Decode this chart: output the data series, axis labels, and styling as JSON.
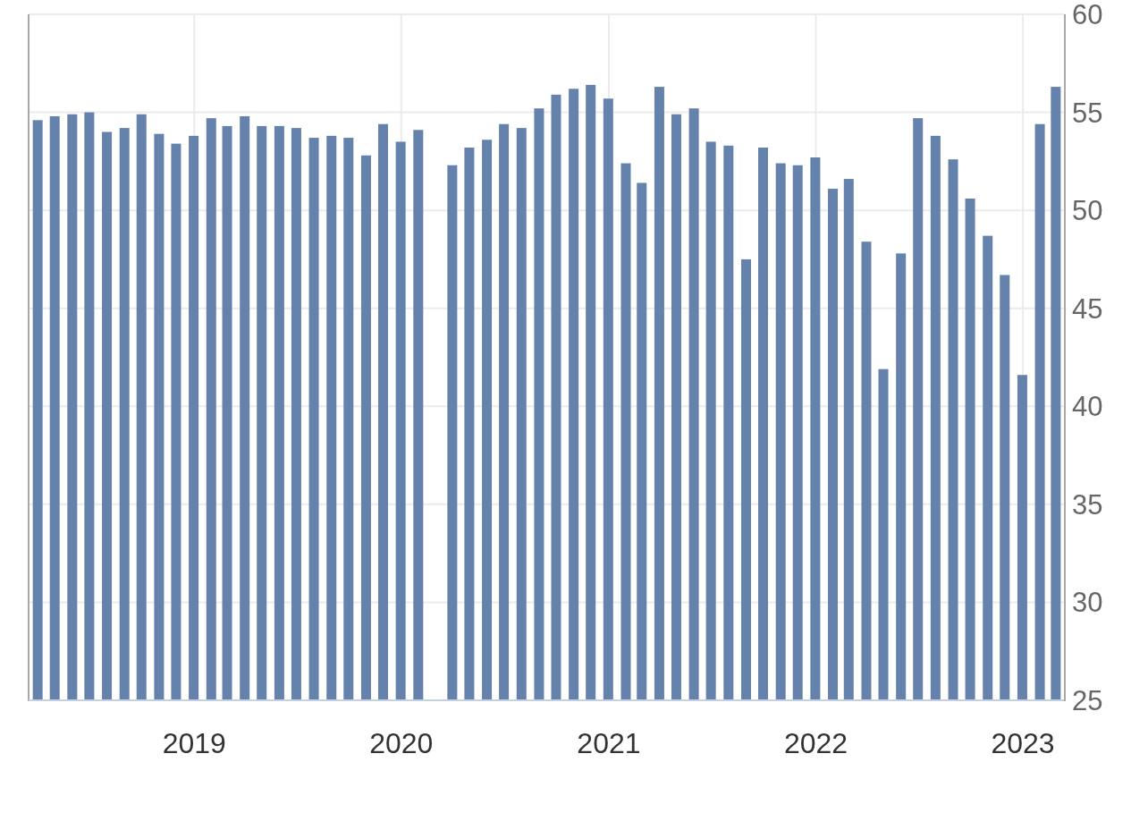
{
  "chart_data": {
    "type": "bar",
    "x": [
      "2018-03-31",
      "2018-04-30",
      "2018-05-31",
      "2018-06-30",
      "2018-07-31",
      "2018-08-31",
      "2018-09-30",
      "2018-10-31",
      "2018-11-30",
      "2018-12-31",
      "2019-01-31",
      "2019-02-28",
      "2019-03-31",
      "2019-04-30",
      "2019-05-31",
      "2019-06-30",
      "2019-07-31",
      "2019-08-31",
      "2019-09-30",
      "2019-10-31",
      "2019-11-30",
      "2019-12-31",
      "2020-01-31",
      "2020-02-29",
      "2020-03-31",
      "2020-04-30",
      "2020-05-31",
      "2020-06-30",
      "2020-07-31",
      "2020-08-31",
      "2020-09-30",
      "2020-10-31",
      "2020-11-30",
      "2020-12-31",
      "2021-01-31",
      "2021-02-28",
      "2021-03-31",
      "2021-04-30",
      "2021-05-31",
      "2021-06-30",
      "2021-07-31",
      "2021-08-31",
      "2021-09-30",
      "2021-10-31",
      "2021-11-30",
      "2021-12-31",
      "2022-01-31",
      "2022-02-28",
      "2022-03-31",
      "2022-04-30",
      "2022-05-31",
      "2022-06-30",
      "2022-07-31",
      "2022-08-31",
      "2022-09-30",
      "2022-10-31",
      "2022-11-30",
      "2022-12-31",
      "2023-01-31",
      "2023-02-28"
    ],
    "values": [
      54.6,
      54.8,
      54.9,
      55.0,
      54.0,
      54.2,
      54.9,
      53.9,
      53.4,
      53.8,
      54.7,
      54.3,
      54.8,
      54.3,
      54.3,
      54.2,
      53.7,
      53.8,
      53.7,
      52.8,
      54.4,
      53.5,
      54.1,
      null,
      52.3,
      53.2,
      53.6,
      54.4,
      54.2,
      55.2,
      55.9,
      56.2,
      56.4,
      55.7,
      52.4,
      51.4,
      56.3,
      54.9,
      55.2,
      53.5,
      53.3,
      47.5,
      53.2,
      52.4,
      52.3,
      52.7,
      51.1,
      51.6,
      48.4,
      41.9,
      47.8,
      54.7,
      53.8,
      52.6,
      50.6,
      48.7,
      46.7,
      41.6,
      54.4,
      56.3
    ],
    "color": "#6582ac",
    "xlim": [
      "2018-03-15",
      "2023-03-16"
    ],
    "xticks": [
      "2019",
      "2020",
      "2021",
      "2022",
      "2023"
    ],
    "ylim": [
      25,
      60
    ],
    "yticks": [
      25,
      30,
      35,
      40,
      45,
      50,
      55,
      60
    ],
    "grid": true
  }
}
